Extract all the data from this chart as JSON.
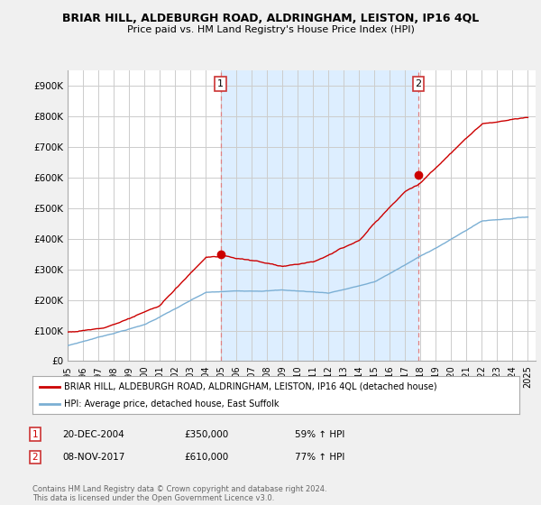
{
  "title": "BRIAR HILL, ALDEBURGH ROAD, ALDRINGHAM, LEISTON, IP16 4QL",
  "subtitle": "Price paid vs. HM Land Registry's House Price Index (HPI)",
  "background_color": "#f0f0f0",
  "plot_background": "#ffffff",
  "red_line_color": "#cc0000",
  "blue_line_color": "#7bafd4",
  "shade_color": "#ddeeff",
  "vline_color": "#e08080",
  "ylim": [
    0,
    950000
  ],
  "yticks": [
    0,
    100000,
    200000,
    300000,
    400000,
    500000,
    600000,
    700000,
    800000,
    900000
  ],
  "ytick_labels": [
    "£0",
    "£100K",
    "£200K",
    "£300K",
    "£400K",
    "£500K",
    "£600K",
    "£700K",
    "£800K",
    "£900K"
  ],
  "sale1_x": 2004.97,
  "sale1_y": 350000,
  "sale2_x": 2017.86,
  "sale2_y": 610000,
  "xmin": 1995.0,
  "xmax": 2025.5,
  "legend_line1": "BRIAR HILL, ALDEBURGH ROAD, ALDRINGHAM, LEISTON, IP16 4QL (detached house)",
  "legend_line2": "HPI: Average price, detached house, East Suffolk",
  "annotation1_num": "1",
  "annotation1_date": "20-DEC-2004",
  "annotation1_price": "£350,000",
  "annotation1_hpi": "59% ↑ HPI",
  "annotation2_num": "2",
  "annotation2_date": "08-NOV-2017",
  "annotation2_price": "£610,000",
  "annotation2_hpi": "77% ↑ HPI",
  "footer": "Contains HM Land Registry data © Crown copyright and database right 2024.\nThis data is licensed under the Open Government Licence v3.0."
}
